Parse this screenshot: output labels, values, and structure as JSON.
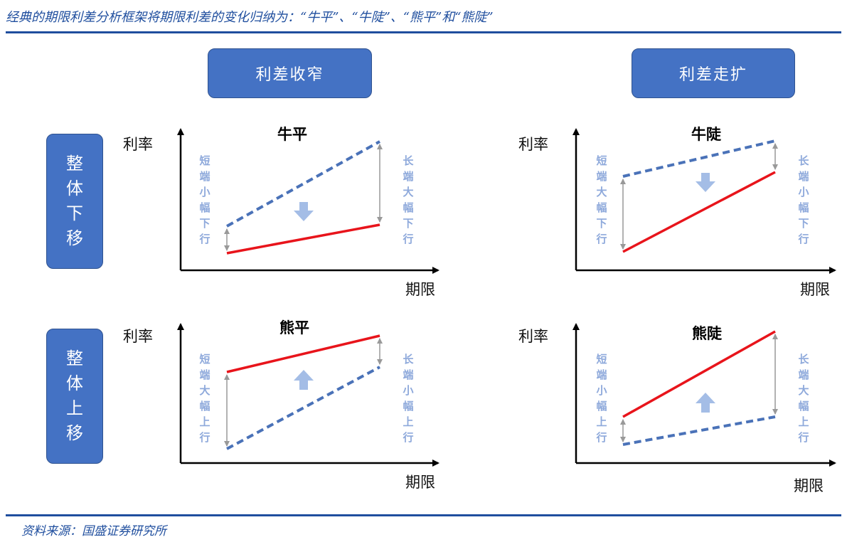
{
  "title": "经典的期限利差分析框架将期限利差的变化归纳为：“牛平”、“牛陡”、“熊平”和“熊陡”",
  "source": "资料来源：国盛证券研究所",
  "headers": {
    "narrow": "利差收窄",
    "widen": "利差走扩"
  },
  "rows": {
    "down": [
      "整",
      "体",
      "下",
      "移"
    ],
    "up": [
      "整",
      "体",
      "上",
      "移"
    ]
  },
  "axis": {
    "y": "利率",
    "x": "期限"
  },
  "colors": {
    "red_line": "#e8141b",
    "blue_dashed": "#4a72b8",
    "arrow": "#a4bde6",
    "box": "#4472c4",
    "side_text": "#8ea9db"
  },
  "panels": {
    "bull_flat": {
      "title": "牛平",
      "left_label": [
        "短",
        "端",
        "小",
        "幅",
        "下",
        "行"
      ],
      "right_label": [
        "长",
        "端",
        "大",
        "幅",
        "下",
        "行"
      ]
    },
    "bull_steep": {
      "title": "牛陡",
      "left_label": [
        "短",
        "端",
        "大",
        "幅",
        "下",
        "行"
      ],
      "right_label": [
        "长",
        "端",
        "小",
        "幅",
        "下",
        "行"
      ]
    },
    "bear_flat": {
      "title": "熊平",
      "left_label": [
        "短",
        "端",
        "大",
        "幅",
        "上",
        "行"
      ],
      "right_label": [
        "长",
        "端",
        "小",
        "幅",
        "上",
        "行"
      ]
    },
    "bear_steep": {
      "title": "熊陡",
      "left_label": [
        "短",
        "端",
        "小",
        "幅",
        "上",
        "行"
      ],
      "right_label": [
        "长",
        "端",
        "大",
        "幅",
        "上",
        "行"
      ]
    }
  }
}
